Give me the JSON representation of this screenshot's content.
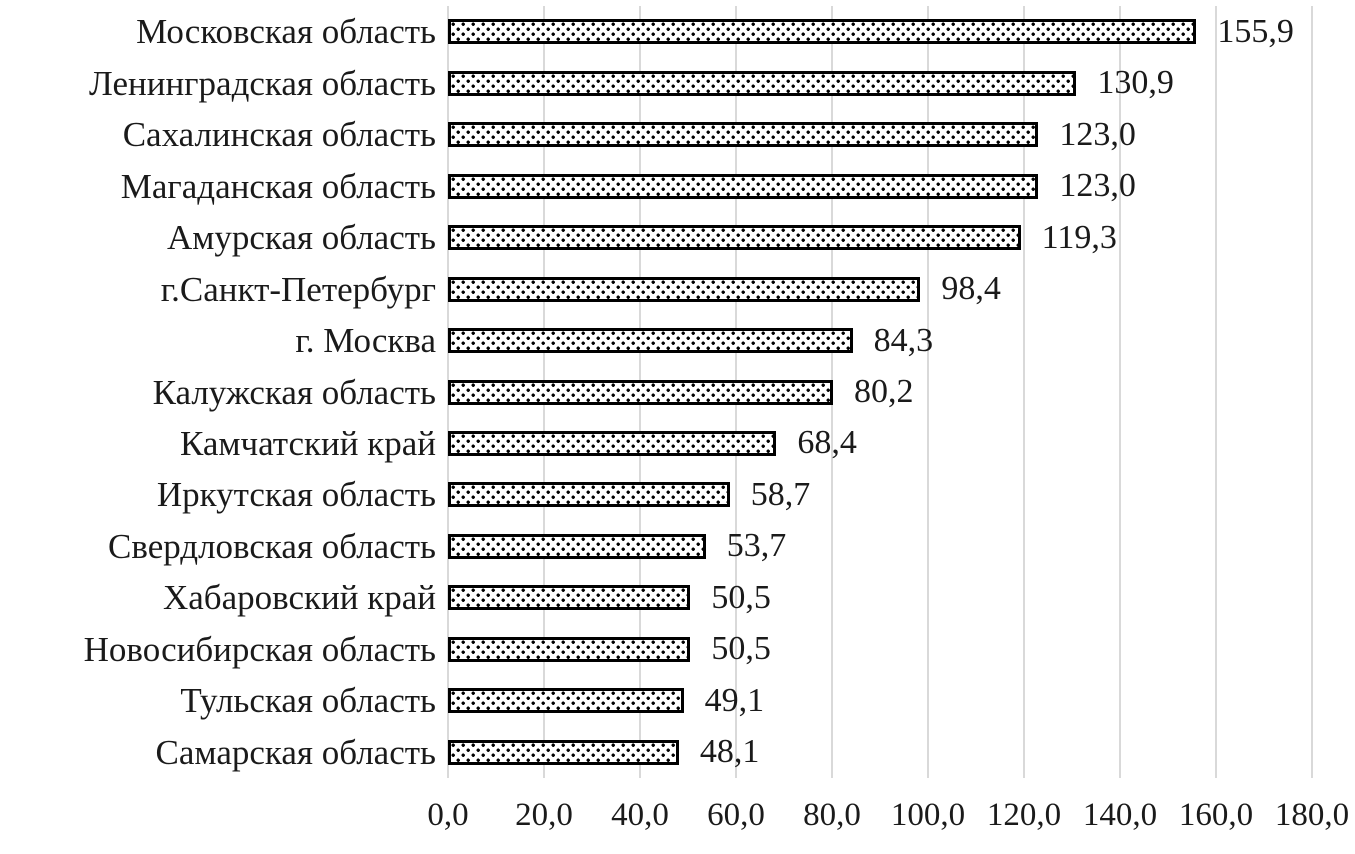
{
  "chart_data": {
    "type": "bar",
    "orientation": "horizontal",
    "title": "",
    "categories": [
      "Московская область",
      "Ленинградская область",
      "Сахалинская область",
      "Магаданская область",
      "Амурская область",
      "г.Санкт-Петербург",
      "г. Москва",
      "Калужская область",
      "Камчатский край",
      "Иркутская область",
      "Свердловская область",
      "Хабаровский край",
      "Новосибирская область",
      "Тульская область",
      "Самарская область"
    ],
    "values": [
      155.9,
      130.9,
      123.0,
      123.0,
      119.3,
      98.4,
      84.3,
      80.2,
      68.4,
      58.7,
      53.7,
      50.5,
      50.5,
      49.1,
      48.1
    ],
    "value_labels": [
      "155,9",
      "130,9",
      "123,0",
      "123,0",
      "119,3",
      "98,4",
      "84,3",
      "80,2",
      "68,4",
      "58,7",
      "53,7",
      "50,5",
      "50,5",
      "49,1",
      "48,1"
    ],
    "xlim": [
      0,
      180
    ],
    "x_tick_values": [
      0,
      20,
      40,
      60,
      80,
      100,
      120,
      140,
      160,
      180
    ],
    "x_tick_labels": [
      "0,0",
      "20,0",
      "40,0",
      "60,0",
      "80,0",
      "100,0",
      "120,0",
      "140,0",
      "160,0",
      "180,0"
    ],
    "grid": "vertical-gridlines",
    "legend": "none",
    "bar_style": "white fill with black stipple-dot pattern and black border"
  },
  "colors": {
    "background": "#ffffff",
    "bar_fill": "#ffffff",
    "bar_dots": "#000000",
    "bar_border": "#000000",
    "gridline": "#d9d9d9",
    "text": "#1a1a1a"
  }
}
